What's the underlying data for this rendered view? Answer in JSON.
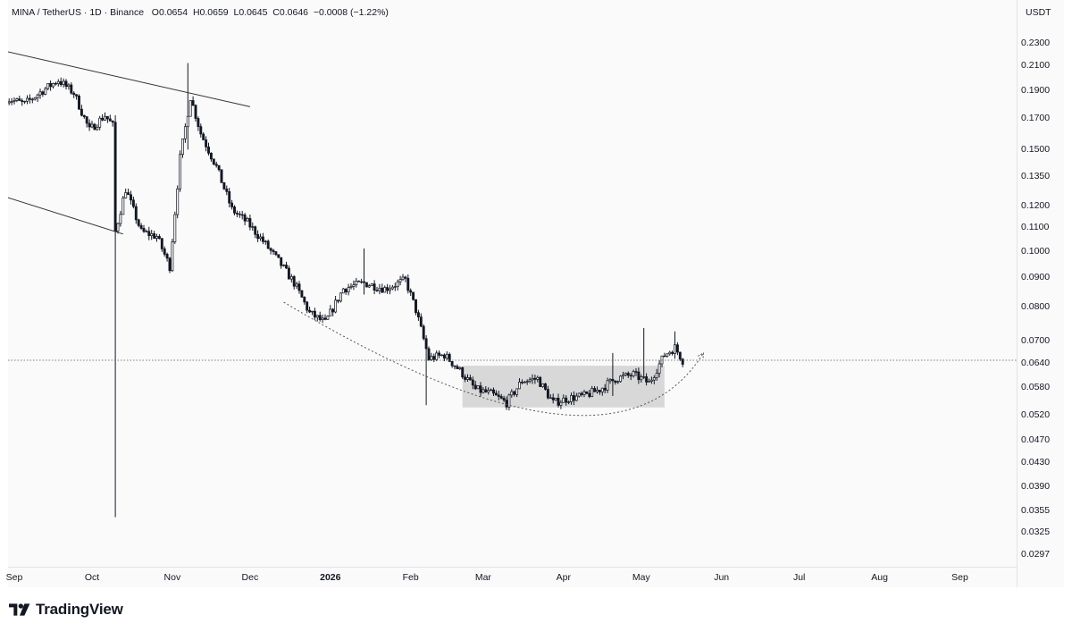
{
  "legend": {
    "symbol": "MINA / TetherUS · 1D · Binance",
    "open": "O0.0654",
    "high": "H0.0659",
    "low": "L0.0645",
    "close": "C0.0646",
    "change": "−0.0008 (−1.22%)"
  },
  "brand": {
    "name": "TradingView",
    "logo_icon": "tradingview-logo-icon"
  },
  "colors": {
    "candle": "#131722",
    "background": "#fafafa",
    "range_box": "#d1d1d1",
    "lines": "#555555"
  },
  "chart_data": {
    "type": "candlestick",
    "title": "MINA / TetherUS · 1D · Binance",
    "y_scale": "log",
    "y_unit": "USDT",
    "ylim": [
      0.0285,
      0.245
    ],
    "current_price": 0.0646,
    "y_ticks": [
      "0.2300",
      "0.2100",
      "0.1900",
      "0.1700",
      "0.1500",
      "0.1350",
      "0.1200",
      "0.1100",
      "0.1000",
      "0.0900",
      "0.0800",
      "0.0700",
      "0.0640",
      "0.0580",
      "0.0520",
      "0.0470",
      "0.0430",
      "0.0390",
      "0.0355",
      "0.0325",
      "0.0297"
    ],
    "x_ticks": [
      {
        "label": "Sep",
        "date": "2025-09-01"
      },
      {
        "label": "Oct",
        "date": "2025-10-01"
      },
      {
        "label": "Nov",
        "date": "2025-11-01"
      },
      {
        "label": "Dec",
        "date": "2025-12-01"
      },
      {
        "label": "2026",
        "date": "2026-01-01",
        "bold": true
      },
      {
        "label": "Feb",
        "date": "2026-02-01"
      },
      {
        "label": "Mar",
        "date": "2026-03-01"
      },
      {
        "label": "Apr",
        "date": "2026-04-01"
      },
      {
        "label": "May",
        "date": "2026-05-01"
      },
      {
        "label": "Jun",
        "date": "2026-06-01"
      },
      {
        "label": "Jul",
        "date": "2026-07-01"
      },
      {
        "label": "Aug",
        "date": "2026-08-01"
      },
      {
        "label": "Sep",
        "date": "2026-09-01"
      }
    ],
    "series_start": "2025-08-29",
    "close_path": [
      [
        "2025-08-29",
        0.184
      ],
      [
        "2025-09-05",
        0.18
      ],
      [
        "2025-09-12",
        0.19
      ],
      [
        "2025-09-18",
        0.198
      ],
      [
        "2025-09-24",
        0.188
      ],
      [
        "2025-09-30",
        0.162
      ],
      [
        "2025-10-06",
        0.172
      ],
      [
        "2025-10-09",
        0.165
      ],
      [
        "2025-10-10",
        0.108
      ],
      [
        "2025-10-14",
        0.128
      ],
      [
        "2025-10-20",
        0.108
      ],
      [
        "2025-10-26",
        0.106
      ],
      [
        "2025-10-31",
        0.094
      ],
      [
        "2025-11-04",
        0.145
      ],
      [
        "2025-11-08",
        0.185
      ],
      [
        "2025-11-12",
        0.16
      ],
      [
        "2025-11-18",
        0.14
      ],
      [
        "2025-11-24",
        0.118
      ],
      [
        "2025-11-30",
        0.112
      ],
      [
        "2025-12-06",
        0.104
      ],
      [
        "2025-12-12",
        0.096
      ],
      [
        "2025-12-18",
        0.088
      ],
      [
        "2025-12-24",
        0.078
      ],
      [
        "2025-12-30",
        0.075
      ],
      [
        "2026-01-06",
        0.086
      ],
      [
        "2026-01-14",
        0.088
      ],
      [
        "2026-01-22",
        0.086
      ],
      [
        "2026-01-30",
        0.089
      ],
      [
        "2026-02-03",
        0.079
      ],
      [
        "2026-02-08",
        0.065
      ],
      [
        "2026-02-14",
        0.066
      ],
      [
        "2026-02-20",
        0.062
      ],
      [
        "2026-02-26",
        0.0575
      ],
      [
        "2026-03-04",
        0.0565
      ],
      [
        "2026-03-10",
        0.0545
      ],
      [
        "2026-03-16",
        0.0595
      ],
      [
        "2026-03-22",
        0.06
      ],
      [
        "2026-03-28",
        0.0545
      ],
      [
        "2026-04-03",
        0.0555
      ],
      [
        "2026-04-09",
        0.056
      ],
      [
        "2026-04-15",
        0.0575
      ],
      [
        "2026-04-21",
        0.06
      ],
      [
        "2026-04-28",
        0.061
      ],
      [
        "2026-05-04",
        0.059
      ],
      [
        "2026-05-10",
        0.066
      ],
      [
        "2026-05-14",
        0.068
      ],
      [
        "2026-05-17",
        0.0646
      ]
    ],
    "spikes": [
      {
        "date": "2025-10-10",
        "high": 0.172,
        "low": 0.0345
      },
      {
        "date": "2025-11-07",
        "high": 0.212,
        "low": 0.15
      },
      {
        "date": "2026-01-14",
        "high": 0.101,
        "low": 0.084
      },
      {
        "date": "2026-02-07",
        "high": 0.07,
        "low": 0.054
      },
      {
        "date": "2026-04-20",
        "high": 0.0665,
        "low": 0.056
      },
      {
        "date": "2026-05-02",
        "high": 0.0735,
        "low": 0.061
      },
      {
        "date": "2026-05-14",
        "high": 0.0725,
        "low": 0.065
      }
    ],
    "annotations": {
      "upper_trendline": [
        [
          "2025-08-29",
          0.222
        ],
        [
          "2025-12-01",
          0.178
        ]
      ],
      "lower_trendline": [
        [
          "2025-08-29",
          0.124
        ],
        [
          "2025-10-13",
          0.107
        ]
      ],
      "range_box": {
        "start": "2026-02-21",
        "end": "2026-05-10",
        "top": 0.0632,
        "bottom": 0.0535
      },
      "rounding_bottom_arc": {
        "start": [
          "2025-12-14",
          0.0815
        ],
        "bottom": [
          "2026-03-28",
          0.0522
        ],
        "end": [
          "2026-05-25",
          0.0665
        ]
      }
    }
  }
}
